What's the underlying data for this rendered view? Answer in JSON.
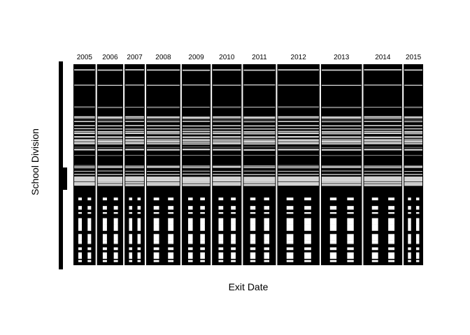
{
  "chart_data": {
    "type": "mosaic",
    "title": "",
    "xlabel": "Exit Date",
    "ylabel": "School Division",
    "categories": [
      "2005",
      "2006",
      "2007",
      "2008",
      "2009",
      "2010",
      "2011",
      "2012",
      "2013",
      "2014",
      "2015"
    ],
    "column_share": [
      0.066,
      0.078,
      0.06,
      0.102,
      0.086,
      0.088,
      0.098,
      0.126,
      0.122,
      0.116,
      0.058
    ],
    "upper_block_share": 0.66,
    "colors": {
      "filled": "#000000",
      "empty": "#d4d4d4",
      "white": "#ffffff",
      "background": "#ffffff"
    },
    "grid": false,
    "legend": "none"
  }
}
